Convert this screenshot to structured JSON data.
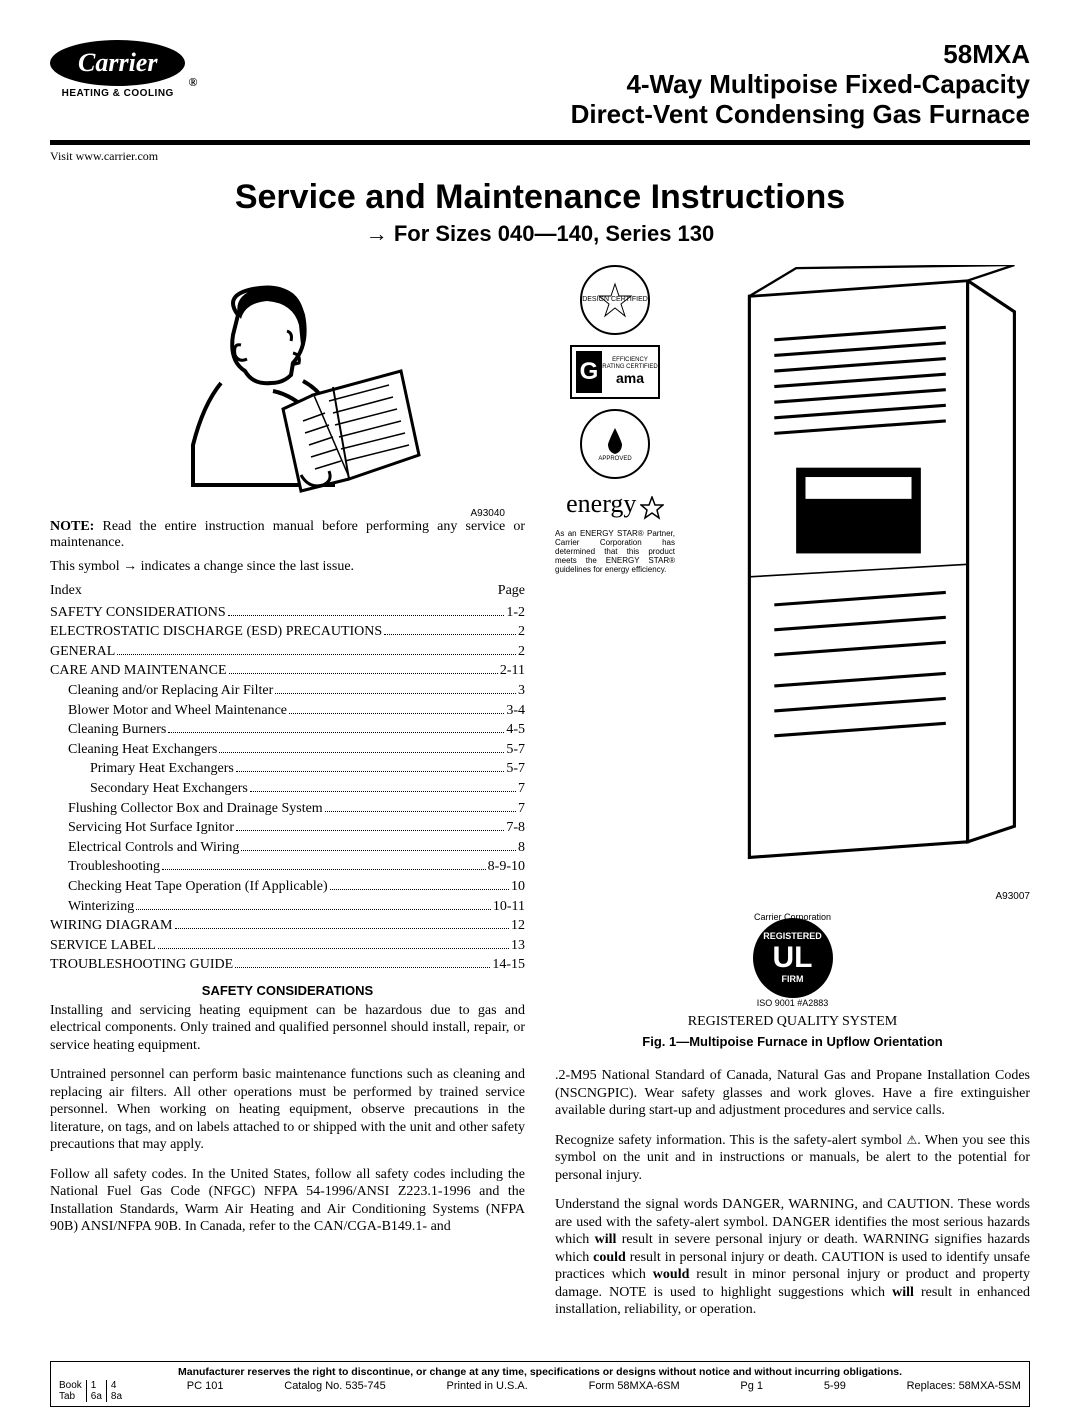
{
  "logo": {
    "brand": "Carrier",
    "reg": "®",
    "tagline": "HEATING & COOLING"
  },
  "header": {
    "model": "58MXA",
    "line2": "4-Way Multipoise Fixed-Capacity",
    "line3": "Direct-Vent Condensing Gas Furnace"
  },
  "visit": "Visit www.carrier.com",
  "main_title": "Service and Maintenance Instructions",
  "sub_title": "→  For Sizes 040—140, Series 130",
  "illus_code_left": "A93040",
  "note_label": "NOTE:",
  "note_text": " Read the entire instruction manual before performing any service or maintenance.",
  "symbol_text": "This symbol → indicates a change since the last issue.",
  "index_label": "Index",
  "page_label": "Page",
  "toc": [
    {
      "t": "SAFETY CONSIDERATIONS",
      "p": "1-2",
      "lvl": 0
    },
    {
      "t": "ELECTROSTATIC DISCHARGE (ESD) PRECAUTIONS",
      "p": "2",
      "lvl": 0
    },
    {
      "t": "GENERAL",
      "p": "2",
      "lvl": 0
    },
    {
      "t": "CARE AND MAINTENANCE",
      "p": "2-11",
      "lvl": 0
    },
    {
      "t": "Cleaning and/or Replacing Air Filter",
      "p": "3",
      "lvl": 1
    },
    {
      "t": "Blower Motor and Wheel Maintenance",
      "p": "3-4",
      "lvl": 1
    },
    {
      "t": "Cleaning Burners",
      "p": "4-5",
      "lvl": 1
    },
    {
      "t": "Cleaning Heat Exchangers",
      "p": "5-7",
      "lvl": 1
    },
    {
      "t": "Primary Heat Exchangers",
      "p": "5-7",
      "lvl": 2
    },
    {
      "t": "Secondary Heat Exchangers",
      "p": "7",
      "lvl": 2
    },
    {
      "t": "Flushing Collector Box and Drainage System",
      "p": "7",
      "lvl": 1
    },
    {
      "t": "Servicing Hot Surface Ignitor",
      "p": "7-8",
      "lvl": 1
    },
    {
      "t": "Electrical Controls and Wiring",
      "p": "8",
      "lvl": 1
    },
    {
      "t": "Troubleshooting",
      "p": "8-9-10",
      "lvl": 1
    },
    {
      "t": "Checking Heat Tape Operation (If Applicable)",
      "p": "10",
      "lvl": 1
    },
    {
      "t": "Winterizing",
      "p": "10-11",
      "lvl": 1
    },
    {
      "t": "WIRING DIAGRAM",
      "p": "12",
      "lvl": 0
    },
    {
      "t": "SERVICE LABEL",
      "p": "13",
      "lvl": 0
    },
    {
      "t": "TROUBLESHOOTING GUIDE",
      "p": "14-15",
      "lvl": 0
    }
  ],
  "safety_head": "SAFETY CONSIDERATIONS",
  "para1": "Installing and servicing heating equipment can be hazardous due to gas and electrical components. Only trained and qualified personnel should install, repair, or service heating equipment.",
  "para2": "Untrained personnel can perform basic maintenance functions such as cleaning and replacing air filters. All other operations must be performed by trained service personnel. When working on heating equipment, observe precautions in the literature, on tags, and on labels attached to or shipped with the unit and other safety precautions that may apply.",
  "para3": "Follow all safety codes. In the United States, follow all safety codes including the National Fuel Gas Code (NFGC) NFPA 54-1996/ANSI Z223.1-1996 and the Installation Standards, Warm Air Heating and Air Conditioning Systems (NFPA 90B) ANSI/NFPA 90B. In Canada, refer to the CAN/CGA-B149.1- and",
  "badges": {
    "design": "DESIGN CERTIFIED",
    "gama_eff": "EFFICIENCY RATING CERTIFIED",
    "gama": "ama",
    "approved": "APPROVED",
    "energy": "energy"
  },
  "energy_note": "As an ENERGY STAR® Partner, Carrier Corporation has determined that this product meets the ENERGY STAR® guidelines for energy efficiency.",
  "furnace_code": "A93007",
  "ul_arc_top": "Carrier Corporation",
  "ul_main": "UL",
  "ul_arc_bottom": "ISO 9001  #A2883",
  "rqs": "REGISTERED QUALITY SYSTEM",
  "fig_caption": "Fig. 1—Multipoise Furnace in Upflow Orientation",
  "rc_para1": ".2-M95 National Standard of Canada, Natural Gas and Propane Installation Codes (NSCNGPIC). Wear safety glasses and work gloves. Have a fire extinguisher available during start-up and adjustment procedures and service calls.",
  "rc_para2_a": "Recognize safety information. This is the safety-alert symbol ",
  "rc_para2_b": ". When you see this symbol on the unit and in instructions or manuals, be alert to the potential for personal injury.",
  "rc_para3": "Understand the signal words DANGER, WARNING, and CAUTION. These words are used with the safety-alert symbol. DANGER identifies the most serious hazards which will result in severe personal injury or death. WARNING signifies hazards which could result in personal injury or death. CAUTION is used to identify unsafe practices which would result in minor personal injury or product and property damage. NOTE is used to highlight suggestions which will result in enhanced installation, reliability, or operation.",
  "footer": {
    "disclaimer": "Manufacturer reserves the right to discontinue, or change at any time, specifications or designs without notice and without incurring obligations.",
    "book": "Book",
    "book_vals": [
      "1",
      "4"
    ],
    "tab": "Tab",
    "tab_vals": [
      "6a",
      "8a"
    ],
    "pc": "PC 101",
    "catalog": "Catalog No. 535-745",
    "printed": "Printed in U.S.A.",
    "form": "Form 58MXA-6SM",
    "pg": "Pg 1",
    "date": "5-99",
    "replaces": "Replaces: 58MXA-5SM"
  }
}
